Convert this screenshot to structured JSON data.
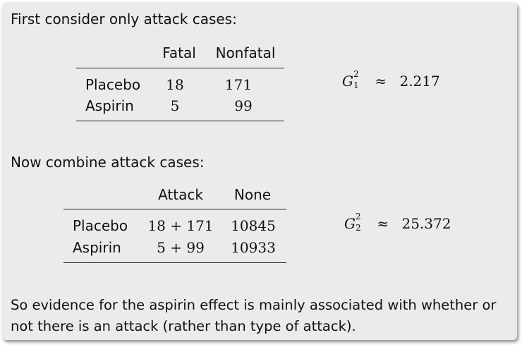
{
  "intro1": "First consider only attack cases:",
  "table1": {
    "headers": [
      "Fatal",
      "Nonfatal"
    ],
    "rows": [
      {
        "label": "Placebo",
        "values": [
          "18",
          "171"
        ]
      },
      {
        "label": "Aspirin",
        "values": [
          "5",
          "99"
        ]
      }
    ]
  },
  "stat1": {
    "symbol": "G",
    "superscript": "2",
    "subscript": "1",
    "approx": "≈",
    "value": "2.217"
  },
  "intro2": "Now combine attack cases:",
  "table2": {
    "headers": [
      "Attack",
      "None"
    ],
    "rows": [
      {
        "label": "Placebo",
        "values": [
          "18 + 171",
          "10845"
        ]
      },
      {
        "label": "Aspirin",
        "values": [
          "5 + 99",
          "10933"
        ]
      }
    ]
  },
  "stat2": {
    "symbol": "G",
    "superscript": "2",
    "subscript": "2",
    "approx": "≈",
    "value": "25.372"
  },
  "conclusion": {
    "line1": "So evidence for the aspirin effect is mainly associated with whether or",
    "line2": "not there is an attack (rather than type of attack)."
  }
}
